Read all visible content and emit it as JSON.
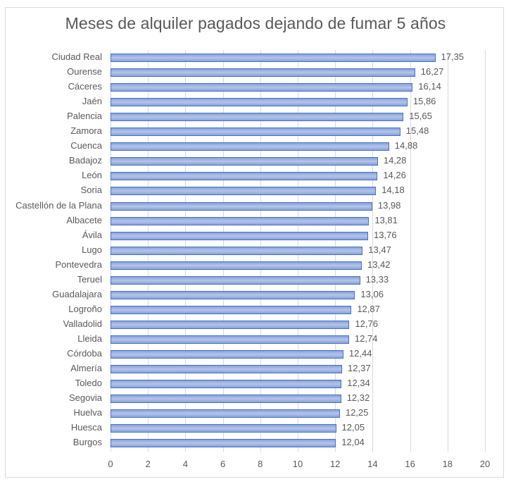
{
  "chart_data": {
    "type": "bar",
    "orientation": "horizontal",
    "title": "Meses de alquiler pagados dejando de fumar 5 años",
    "xlabel": "",
    "ylabel": "",
    "xlim": [
      0,
      20
    ],
    "x_ticks": [
      "0",
      "2",
      "4",
      "6",
      "8",
      "10",
      "12",
      "14",
      "16",
      "18",
      "20"
    ],
    "grid": true,
    "legend": null,
    "bar_color": "#4472C4",
    "categories": [
      "Ciudad Real",
      "Ourense",
      "Cáceres",
      "Jaén",
      "Palencia",
      "Zamora",
      "Cuenca",
      "Badajoz",
      "León",
      "Soria",
      "Castellón de la Plana",
      "Albacete",
      "Ávila",
      "Lugo",
      "Pontevedra",
      "Teruel",
      "Guadalajara",
      "Logroño",
      "Valladolid",
      "Lleida",
      "Córdoba",
      "Almería",
      "Toledo",
      "Segovia",
      "Huelva",
      "Huesca",
      "Burgos"
    ],
    "values": [
      17.35,
      16.27,
      16.14,
      15.86,
      15.65,
      15.48,
      14.88,
      14.28,
      14.26,
      14.18,
      13.98,
      13.81,
      13.76,
      13.47,
      13.42,
      13.33,
      13.06,
      12.87,
      12.76,
      12.74,
      12.44,
      12.37,
      12.34,
      12.32,
      12.25,
      12.05,
      12.04
    ],
    "value_labels": [
      "17,35",
      "16,27",
      "16,14",
      "15,86",
      "15,65",
      "15,48",
      "14,88",
      "14,28",
      "14,26",
      "14,18",
      "13,98",
      "13,81",
      "13,76",
      "13,47",
      "13,42",
      "13,33",
      "13,06",
      "12,87",
      "12,76",
      "12,74",
      "12,44",
      "12,37",
      "12,34",
      "12,32",
      "12,25",
      "12,05",
      "12,04"
    ]
  }
}
